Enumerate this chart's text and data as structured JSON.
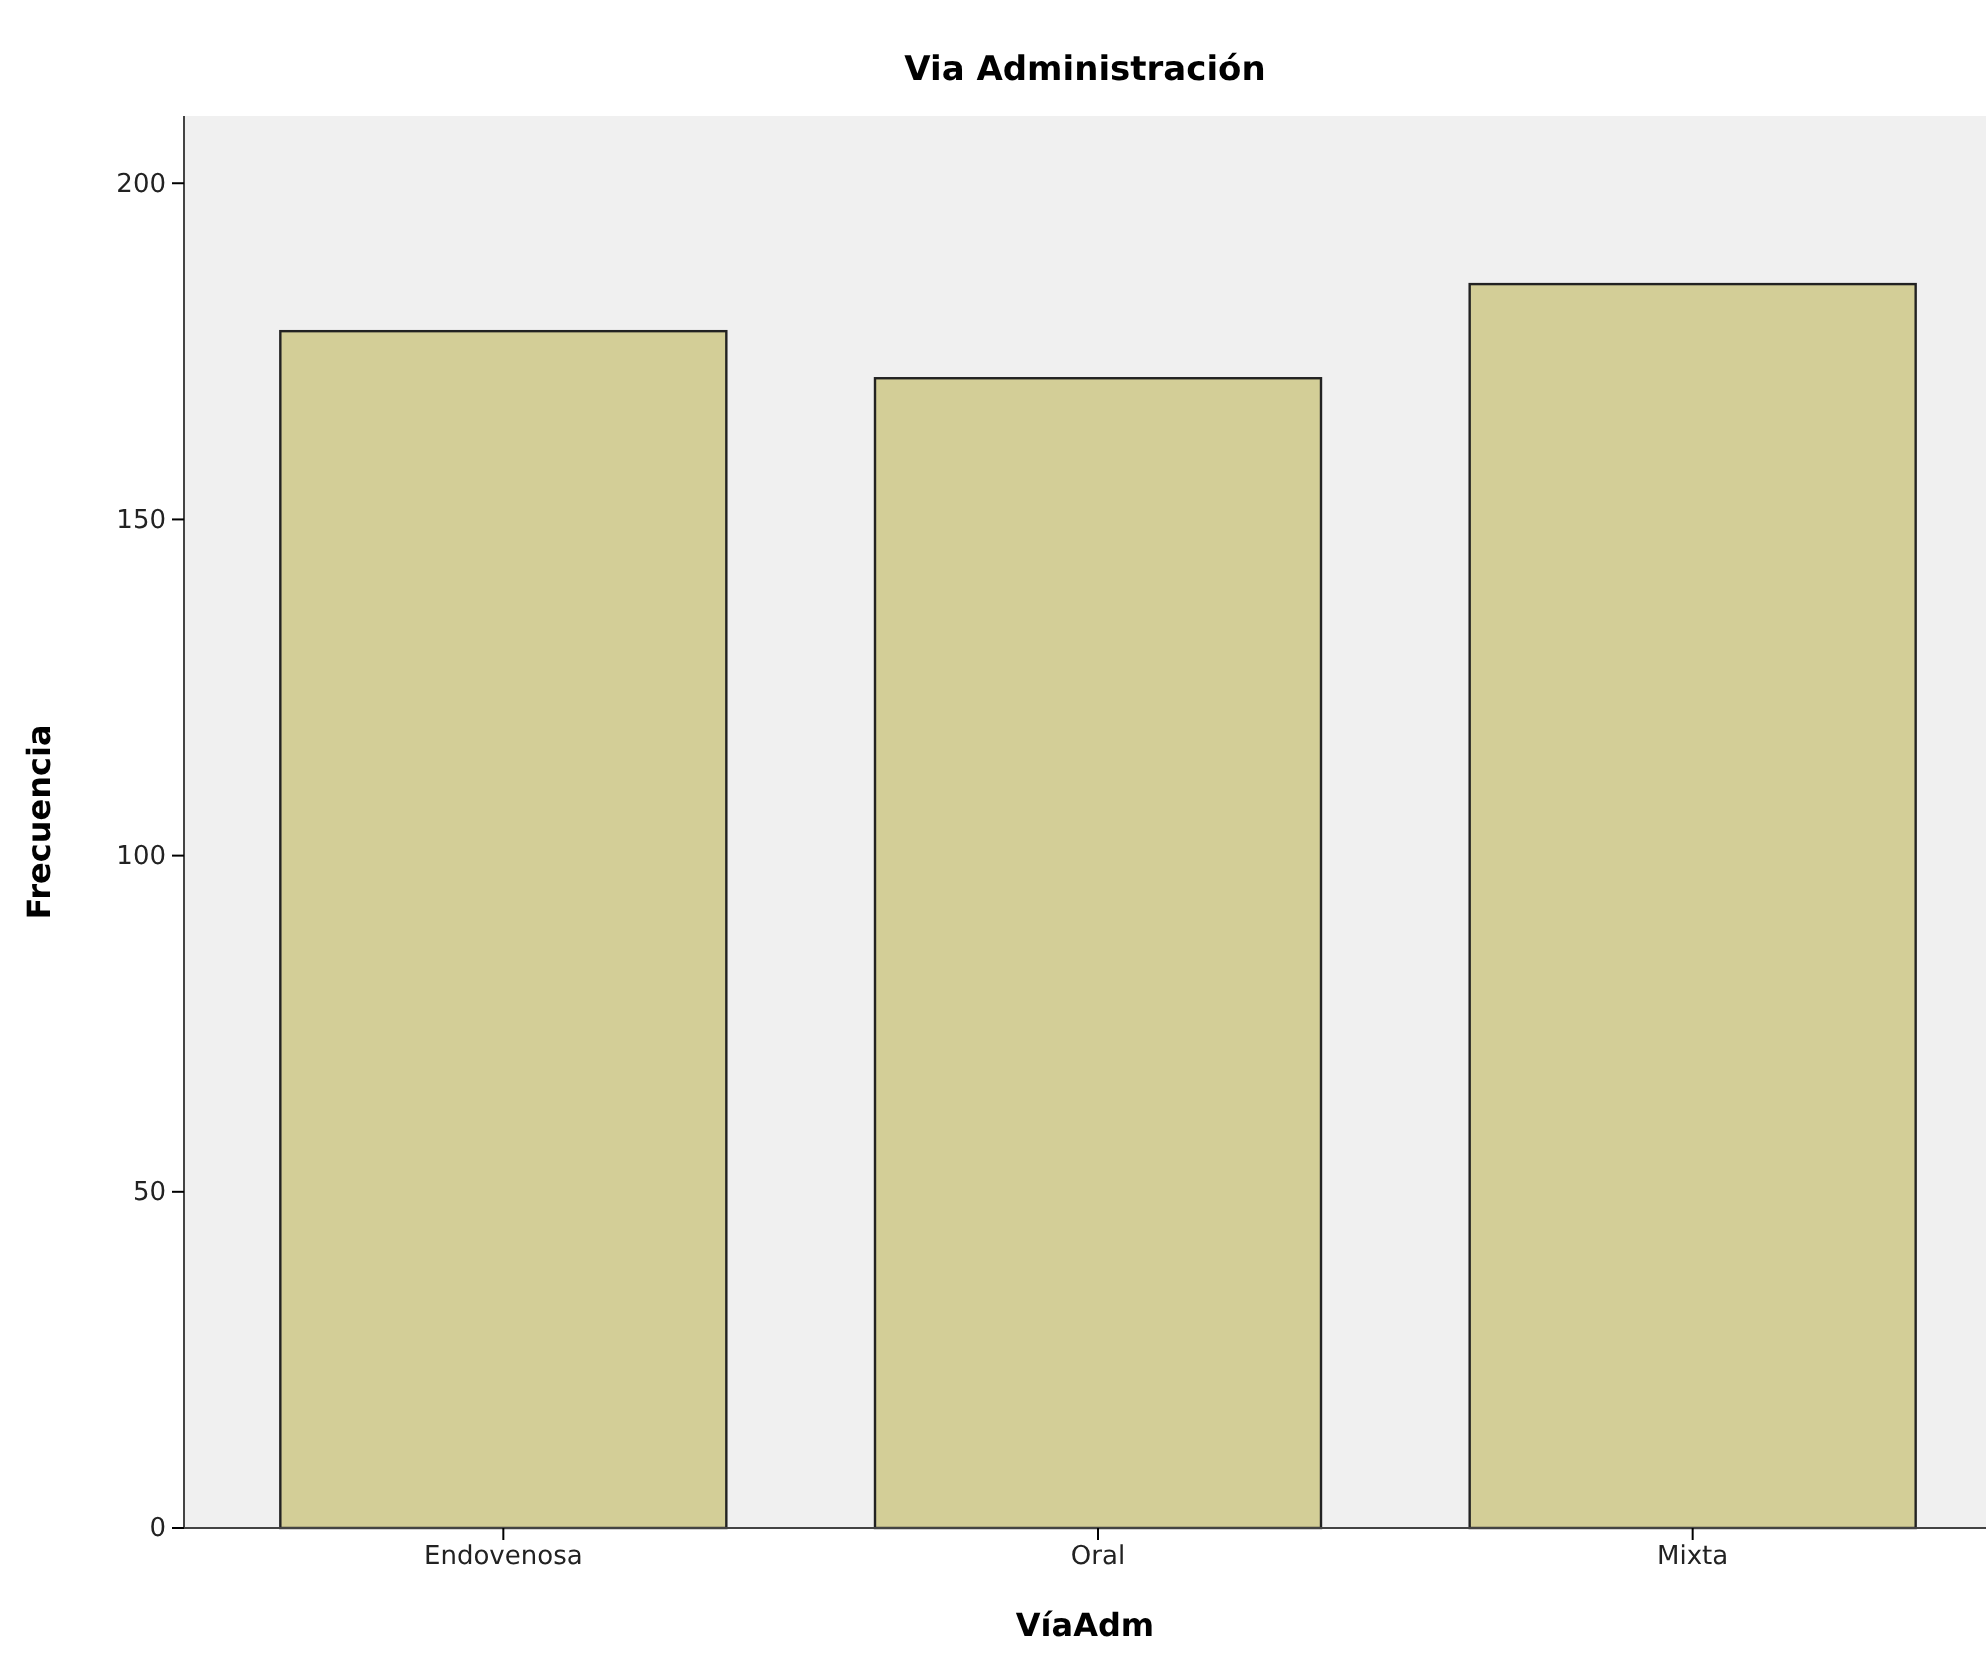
{
  "chart_data": {
    "type": "bar",
    "title": "Via Administración",
    "xlabel": "VíaAdm",
    "ylabel": "Frecuencia",
    "categories": [
      "Endovenosa",
      "Oral",
      "Mixta"
    ],
    "values": [
      178,
      171,
      185
    ],
    "color": "#d3ce97",
    "ylim": [
      0,
      210
    ],
    "yticks": [
      0,
      50,
      100,
      150,
      200
    ],
    "grid": false
  }
}
